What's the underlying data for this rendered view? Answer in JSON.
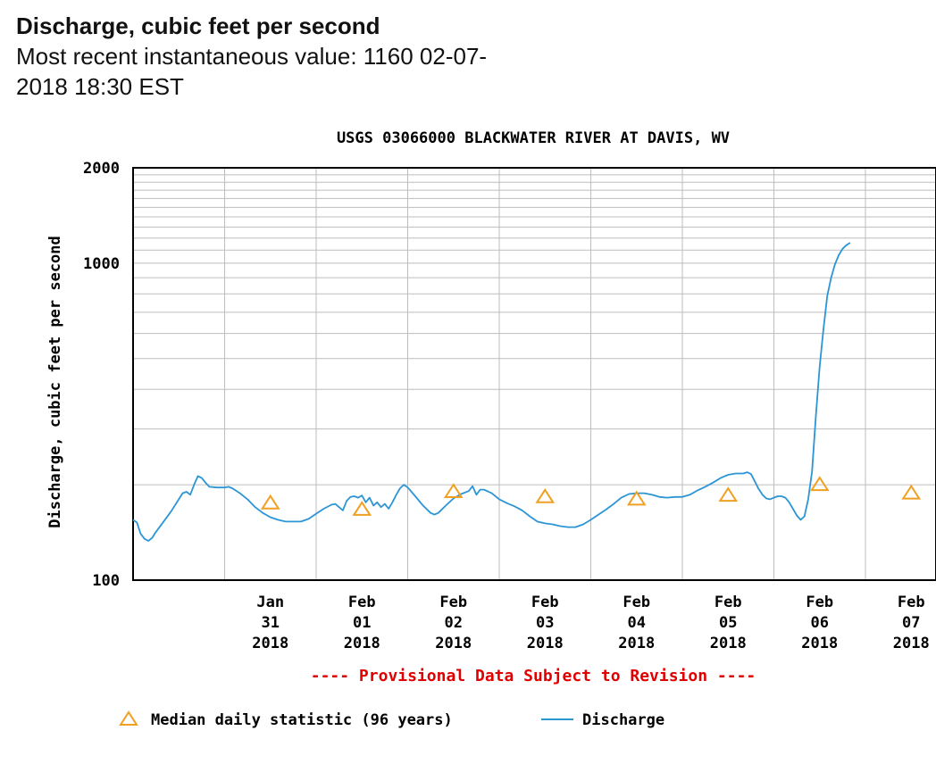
{
  "header": {
    "title": "Discharge, cubic feet per second",
    "recent_label": "Most recent instantaneous value: 1160 02-07-",
    "recent_label_cont": "2018   18:30 EST"
  },
  "colors": {
    "discharge_line": "#2b95d6",
    "median_marker": "#f0a020",
    "provisional_text": "#e00000",
    "grid": "#bdbdbd",
    "axes": "#000000"
  },
  "chart_data": {
    "type": "line",
    "title": "USGS 03066000 BLACKWATER RIVER AT DAVIS, WV",
    "ylabel": "Discharge, cubic feet per second",
    "xlabel": "",
    "y_scale": "log",
    "ylim": [
      100,
      2000
    ],
    "y_ticks": [
      "100",
      "1000",
      "2000"
    ],
    "x_ticks": [
      {
        "label": [
          "Jan",
          "31",
          "2018"
        ],
        "x": "2018-01-31"
      },
      {
        "label": [
          "Feb",
          "01",
          "2018"
        ],
        "x": "2018-02-01"
      },
      {
        "label": [
          "Feb",
          "02",
          "2018"
        ],
        "x": "2018-02-02"
      },
      {
        "label": [
          "Feb",
          "03",
          "2018"
        ],
        "x": "2018-02-03"
      },
      {
        "label": [
          "Feb",
          "04",
          "2018"
        ],
        "x": "2018-02-04"
      },
      {
        "label": [
          "Feb",
          "05",
          "2018"
        ],
        "x": "2018-02-05"
      },
      {
        "label": [
          "Feb",
          "06",
          "2018"
        ],
        "x": "2018-02-06"
      },
      {
        "label": [
          "Feb",
          "07",
          "2018"
        ],
        "x": "2018-02-07"
      }
    ],
    "xlim": [
      "2018-01-30 00:00",
      "2018-02-07 18:30"
    ],
    "provisional_note": "---- Provisional Data Subject to Revision ----",
    "legend": {
      "placement": "bottom",
      "median_label": "Median daily statistic (96 years)",
      "discharge_label": "Discharge"
    },
    "series": [
      {
        "name": "Discharge",
        "points": [
          [
            "2018-01-30 00:00",
            155
          ],
          [
            "2018-01-30 01:00",
            152
          ],
          [
            "2018-01-30 02:00",
            140
          ],
          [
            "2018-01-30 03:00",
            135
          ],
          [
            "2018-01-30 04:00",
            133
          ],
          [
            "2018-01-30 05:00",
            136
          ],
          [
            "2018-01-30 06:00",
            142
          ],
          [
            "2018-01-30 08:00",
            153
          ],
          [
            "2018-01-30 10:00",
            165
          ],
          [
            "2018-01-30 12:00",
            180
          ],
          [
            "2018-01-30 13:00",
            188
          ],
          [
            "2018-01-30 14:00",
            190
          ],
          [
            "2018-01-30 15:00",
            186
          ],
          [
            "2018-01-30 16:00",
            200
          ],
          [
            "2018-01-30 17:00",
            213
          ],
          [
            "2018-01-30 18:00",
            210
          ],
          [
            "2018-01-30 19:00",
            203
          ],
          [
            "2018-01-30 20:00",
            197
          ],
          [
            "2018-01-30 22:00",
            196
          ],
          [
            "2018-01-31 00:00",
            196
          ],
          [
            "2018-01-31 01:00",
            197
          ],
          [
            "2018-01-31 02:00",
            195
          ],
          [
            "2018-01-31 04:00",
            188
          ],
          [
            "2018-01-31 06:00",
            180
          ],
          [
            "2018-01-31 08:00",
            170
          ],
          [
            "2018-01-31 10:00",
            163
          ],
          [
            "2018-01-31 12:00",
            158
          ],
          [
            "2018-01-31 14:00",
            155
          ],
          [
            "2018-01-31 16:00",
            153
          ],
          [
            "2018-01-31 18:00",
            153
          ],
          [
            "2018-01-31 20:00",
            153
          ],
          [
            "2018-01-31 22:00",
            156
          ],
          [
            "2018-02-01 00:00",
            162
          ],
          [
            "2018-02-01 02:00",
            168
          ],
          [
            "2018-02-01 04:00",
            173
          ],
          [
            "2018-02-01 05:00",
            174
          ],
          [
            "2018-02-01 06:00",
            170
          ],
          [
            "2018-02-01 07:00",
            166
          ],
          [
            "2018-02-01 08:00",
            178
          ],
          [
            "2018-02-01 09:00",
            183
          ],
          [
            "2018-02-01 10:00",
            184
          ],
          [
            "2018-02-01 11:00",
            182
          ],
          [
            "2018-02-01 12:00",
            185
          ],
          [
            "2018-02-01 13:00",
            176
          ],
          [
            "2018-02-01 14:00",
            182
          ],
          [
            "2018-02-01 15:00",
            172
          ],
          [
            "2018-02-01 16:00",
            176
          ],
          [
            "2018-02-01 17:00",
            170
          ],
          [
            "2018-02-01 18:00",
            174
          ],
          [
            "2018-02-01 19:00",
            168
          ],
          [
            "2018-02-01 20:00",
            176
          ],
          [
            "2018-02-01 21:00",
            186
          ],
          [
            "2018-02-01 22:00",
            195
          ],
          [
            "2018-02-01 23:00",
            200
          ],
          [
            "2018-02-02 00:00",
            196
          ],
          [
            "2018-02-02 02:00",
            184
          ],
          [
            "2018-02-02 04:00",
            172
          ],
          [
            "2018-02-02 06:00",
            163
          ],
          [
            "2018-02-02 07:00",
            161
          ],
          [
            "2018-02-02 08:00",
            163
          ],
          [
            "2018-02-02 10:00",
            172
          ],
          [
            "2018-02-02 12:00",
            181
          ],
          [
            "2018-02-02 14:00",
            187
          ],
          [
            "2018-02-02 16:00",
            191
          ],
          [
            "2018-02-02 17:00",
            198
          ],
          [
            "2018-02-02 18:00",
            186
          ],
          [
            "2018-02-02 19:00",
            193
          ],
          [
            "2018-02-02 20:00",
            193
          ],
          [
            "2018-02-02 22:00",
            188
          ],
          [
            "2018-02-03 00:00",
            180
          ],
          [
            "2018-02-03 02:00",
            175
          ],
          [
            "2018-02-03 04:00",
            171
          ],
          [
            "2018-02-03 06:00",
            166
          ],
          [
            "2018-02-03 08:00",
            159
          ],
          [
            "2018-02-03 10:00",
            153
          ],
          [
            "2018-02-03 12:00",
            151
          ],
          [
            "2018-02-03 14:00",
            150
          ],
          [
            "2018-02-03 16:00",
            148
          ],
          [
            "2018-02-03 18:00",
            147
          ],
          [
            "2018-02-03 20:00",
            147
          ],
          [
            "2018-02-03 22:00",
            150
          ],
          [
            "2018-02-04 00:00",
            155
          ],
          [
            "2018-02-04 02:00",
            161
          ],
          [
            "2018-02-04 04:00",
            167
          ],
          [
            "2018-02-04 06:00",
            174
          ],
          [
            "2018-02-04 08:00",
            182
          ],
          [
            "2018-02-04 10:00",
            187
          ],
          [
            "2018-02-04 12:00",
            188
          ],
          [
            "2018-02-04 14:00",
            188
          ],
          [
            "2018-02-04 16:00",
            186
          ],
          [
            "2018-02-04 18:00",
            183
          ],
          [
            "2018-02-04 20:00",
            182
          ],
          [
            "2018-02-04 22:00",
            183
          ],
          [
            "2018-02-05 00:00",
            183
          ],
          [
            "2018-02-05 02:00",
            186
          ],
          [
            "2018-02-05 04:00",
            192
          ],
          [
            "2018-02-05 06:00",
            197
          ],
          [
            "2018-02-05 08:00",
            203
          ],
          [
            "2018-02-05 10:00",
            210
          ],
          [
            "2018-02-05 12:00",
            215
          ],
          [
            "2018-02-05 14:00",
            217
          ],
          [
            "2018-02-05 16:00",
            217
          ],
          [
            "2018-02-05 17:00",
            219
          ],
          [
            "2018-02-05 18:00",
            216
          ],
          [
            "2018-02-05 19:00",
            205
          ],
          [
            "2018-02-05 20:00",
            194
          ],
          [
            "2018-02-05 21:00",
            186
          ],
          [
            "2018-02-05 22:00",
            181
          ],
          [
            "2018-02-05 23:00",
            180
          ],
          [
            "2018-02-06 00:00",
            182
          ],
          [
            "2018-02-06 01:00",
            184
          ],
          [
            "2018-02-06 02:00",
            184
          ],
          [
            "2018-02-06 03:00",
            182
          ],
          [
            "2018-02-06 04:00",
            176
          ],
          [
            "2018-02-06 05:00",
            168
          ],
          [
            "2018-02-06 06:00",
            160
          ],
          [
            "2018-02-06 07:00",
            155
          ],
          [
            "2018-02-06 08:00",
            159
          ],
          [
            "2018-02-06 09:00",
            180
          ],
          [
            "2018-02-06 10:00",
            220
          ],
          [
            "2018-02-06 11:00",
            330
          ],
          [
            "2018-02-06 12:00",
            470
          ],
          [
            "2018-02-06 13:00",
            620
          ],
          [
            "2018-02-06 14:00",
            790
          ],
          [
            "2018-02-06 15:00",
            900
          ],
          [
            "2018-02-06 16:00",
            990
          ],
          [
            "2018-02-06 17:00",
            1060
          ],
          [
            "2018-02-06 18:00",
            1110
          ],
          [
            "2018-02-06 19:00",
            1140
          ],
          [
            "2018-02-06 20:00",
            1160
          ]
        ]
      },
      {
        "name": "Median daily statistic (96 years)",
        "points": [
          [
            "2018-01-31",
            175
          ],
          [
            "2018-02-01",
            167
          ],
          [
            "2018-02-02",
            190
          ],
          [
            "2018-02-03",
            183
          ],
          [
            "2018-02-04",
            180
          ],
          [
            "2018-02-05",
            185
          ],
          [
            "2018-02-06",
            200
          ],
          [
            "2018-02-07",
            188
          ]
        ]
      }
    ]
  }
}
